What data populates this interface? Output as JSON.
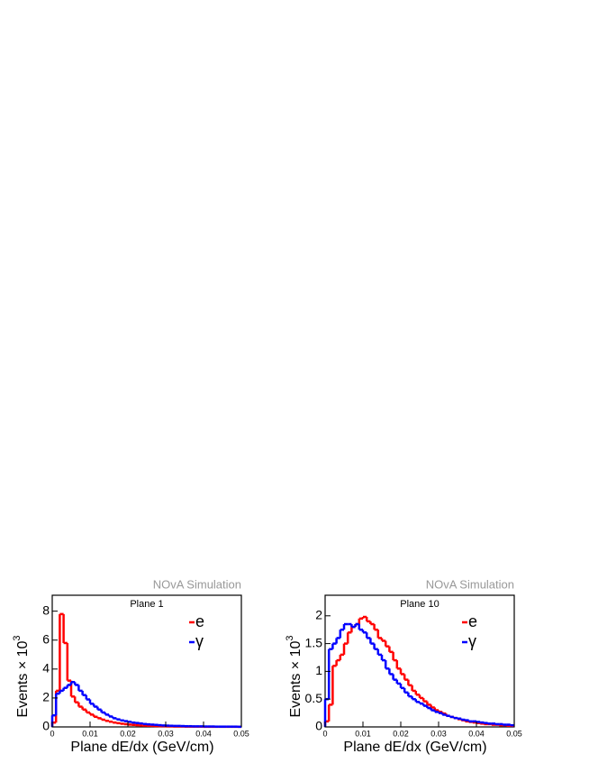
{
  "chart_data": [
    {
      "type": "histogram",
      "title": "Plane 1",
      "watermark": "NOvA Simulation",
      "x_label": "Plane dE/dx (GeV/cm)",
      "y_label": "Events × 10",
      "y_label_sup": "3",
      "bins": [
        0,
        0.001,
        0.002,
        0.003,
        0.004,
        0.005,
        0.006,
        0.007,
        0.008,
        0.009,
        0.01,
        0.011,
        0.012,
        0.013,
        0.014,
        0.015,
        0.016,
        0.017,
        0.018,
        0.019,
        0.02,
        0.021,
        0.022,
        0.023,
        0.024,
        0.025,
        0.026,
        0.027,
        0.028,
        0.029,
        0.03,
        0.031,
        0.032,
        0.033,
        0.034,
        0.035,
        0.036,
        0.037,
        0.038,
        0.039,
        0.04,
        0.041,
        0.042,
        0.043,
        0.044,
        0.045,
        0.046,
        0.047,
        0.048,
        0.049,
        0.05
      ],
      "series": [
        {
          "name": "e",
          "color": "#ff0000",
          "values": [
            0.3,
            2.5,
            7.8,
            5.8,
            3.2,
            2.1,
            1.7,
            1.4,
            1.2,
            1.0,
            0.85,
            0.7,
            0.6,
            0.5,
            0.42,
            0.36,
            0.3,
            0.26,
            0.22,
            0.19,
            0.16,
            0.14,
            0.12,
            0.1,
            0.09,
            0.08,
            0.07,
            0.06,
            0.05,
            0.05,
            0.04,
            0.04,
            0.03,
            0.03,
            0.03,
            0.02,
            0.02,
            0.02,
            0.02,
            0.02,
            0.01,
            0.01,
            0.01,
            0.01,
            0.01,
            0.01,
            0.01,
            0.01,
            0.01,
            0.01
          ]
        },
        {
          "name": "γ",
          "color": "#0000ff",
          "values": [
            0.8,
            2.3,
            2.5,
            2.7,
            2.9,
            3.1,
            2.9,
            2.5,
            2.2,
            1.9,
            1.6,
            1.4,
            1.2,
            1.0,
            0.85,
            0.72,
            0.6,
            0.52,
            0.45,
            0.4,
            0.35,
            0.3,
            0.27,
            0.24,
            0.2,
            0.18,
            0.16,
            0.14,
            0.12,
            0.1,
            0.09,
            0.08,
            0.07,
            0.07,
            0.06,
            0.05,
            0.05,
            0.04,
            0.04,
            0.04,
            0.03,
            0.03,
            0.03,
            0.02,
            0.02,
            0.02,
            0.02,
            0.02,
            0.02,
            0.01
          ]
        }
      ],
      "xlim": [
        0,
        0.05
      ],
      "xticks": [
        0,
        0.01,
        0.02,
        0.03,
        0.04,
        0.05
      ],
      "ylim": [
        0,
        9.1
      ],
      "yticks": [
        0,
        2,
        4,
        6,
        8
      ],
      "legend": "top-right"
    },
    {
      "type": "histogram",
      "title": "Plane 10",
      "watermark": "NOvA Simulation",
      "x_label": "Plane dE/dx (GeV/cm)",
      "y_label": "Events × 10",
      "y_label_sup": "3",
      "bins": [
        0,
        0.001,
        0.002,
        0.003,
        0.004,
        0.005,
        0.006,
        0.007,
        0.008,
        0.009,
        0.01,
        0.011,
        0.012,
        0.013,
        0.014,
        0.015,
        0.016,
        0.017,
        0.018,
        0.019,
        0.02,
        0.021,
        0.022,
        0.023,
        0.024,
        0.025,
        0.026,
        0.027,
        0.028,
        0.029,
        0.03,
        0.031,
        0.032,
        0.033,
        0.034,
        0.035,
        0.036,
        0.037,
        0.038,
        0.039,
        0.04,
        0.041,
        0.042,
        0.043,
        0.044,
        0.045,
        0.046,
        0.047,
        0.048,
        0.049,
        0.05
      ],
      "series": [
        {
          "name": "e",
          "color": "#ff0000",
          "values": [
            0.1,
            0.4,
            1.1,
            1.2,
            1.3,
            1.5,
            1.7,
            1.8,
            1.85,
            1.95,
            1.98,
            1.9,
            1.85,
            1.75,
            1.6,
            1.55,
            1.45,
            1.35,
            1.2,
            1.05,
            0.95,
            0.85,
            0.75,
            0.65,
            0.58,
            0.52,
            0.46,
            0.4,
            0.35,
            0.3,
            0.27,
            0.24,
            0.2,
            0.18,
            0.16,
            0.14,
            0.12,
            0.1,
            0.09,
            0.08,
            0.07,
            0.06,
            0.05,
            0.05,
            0.04,
            0.04,
            0.03,
            0.03,
            0.02,
            0.02
          ]
        },
        {
          "name": "γ",
          "color": "#0000ff",
          "values": [
            0.5,
            1.4,
            1.5,
            1.6,
            1.75,
            1.85,
            1.85,
            1.8,
            1.85,
            1.75,
            1.7,
            1.6,
            1.5,
            1.4,
            1.3,
            1.2,
            1.05,
            0.95,
            0.85,
            0.78,
            0.7,
            0.62,
            0.55,
            0.5,
            0.45,
            0.42,
            0.38,
            0.34,
            0.3,
            0.27,
            0.25,
            0.22,
            0.2,
            0.18,
            0.16,
            0.15,
            0.13,
            0.12,
            0.1,
            0.1,
            0.09,
            0.08,
            0.07,
            0.06,
            0.06,
            0.05,
            0.05,
            0.04,
            0.04,
            0.03
          ]
        }
      ],
      "xlim": [
        0,
        0.05
      ],
      "xticks": [
        0,
        0.01,
        0.02,
        0.03,
        0.04,
        0.05
      ],
      "ylim": [
        0,
        2.37
      ],
      "yticks": [
        0,
        0.5,
        1,
        1.5,
        2
      ],
      "legend": "top-right"
    }
  ]
}
